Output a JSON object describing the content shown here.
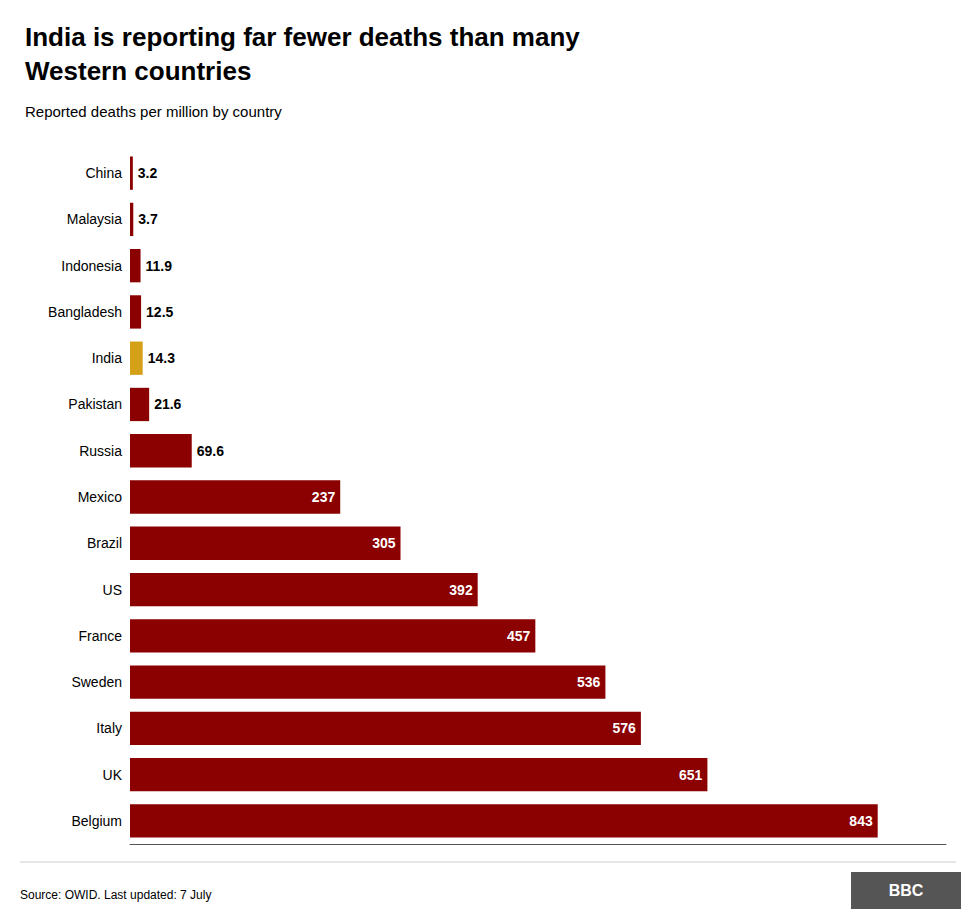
{
  "chart_data": {
    "type": "bar",
    "orientation": "horizontal",
    "title": "India is reporting far fewer deaths than many\nWestern countries",
    "subtitle": "Reported deaths per million by country",
    "annotations": [
      "Source: OWID. Last updated: 7 July",
      "BBC"
    ],
    "categories": [
      "China",
      "Malaysia",
      "Indonesia",
      "Bangladesh",
      "India",
      "Pakistan",
      "Russia",
      "Mexico",
      "Brazil",
      "US",
      "France",
      "Sweden",
      "Italy",
      "UK",
      "Belgium"
    ],
    "values": [
      3.2,
      3.7,
      11.9,
      12.5,
      14.3,
      21.6,
      69.6,
      237,
      305,
      392,
      457,
      536,
      576,
      651,
      843
    ],
    "colors": [
      "#8B0000",
      "#8B0000",
      "#8B0000",
      "#8B0000",
      "#D4A017",
      "#8B0000",
      "#8B0000",
      "#8B0000",
      "#8B0000",
      "#8B0000",
      "#8B0000",
      "#8B0000",
      "#8B0000",
      "#8B0000",
      "#8B0000"
    ],
    "xlim": [
      0,
      920
    ],
    "grid": false,
    "data_labels": true,
    "tick_labels": "y"
  }
}
